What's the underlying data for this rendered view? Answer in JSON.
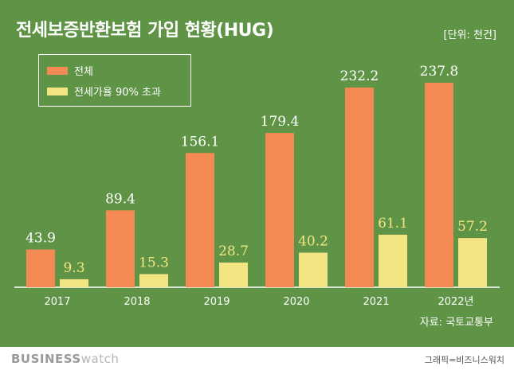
{
  "title": "전세보증반환보험 가입 현황(HUG)",
  "unit": "[단위: 천건]",
  "source": "자료: 국토교통부",
  "footer": {
    "brand_bold": "BUSINESS",
    "brand_light": "watch",
    "credit": "그래픽=비즈니스워치"
  },
  "colors": {
    "background": "#5f9447",
    "total": "#f58a55",
    "over90": "#f2e582",
    "axis": "#ffffff"
  },
  "chart_data": {
    "type": "bar",
    "categories": [
      "2017",
      "2018",
      "2019",
      "2020",
      "2021",
      "2022년"
    ],
    "series": [
      {
        "name": "전체",
        "values": [
          43.9,
          89.4,
          156.1,
          179.4,
          232.2,
          237.8
        ],
        "labels": [
          "43.9",
          "89.4",
          "156.1",
          "179.4",
          "232.2",
          "237.8"
        ]
      },
      {
        "name": "전세가율 90% 초과",
        "values": [
          9.3,
          15.3,
          28.7,
          40.2,
          61.1,
          57.2
        ],
        "labels": [
          "9.3",
          "15.3",
          "28.7",
          "40.2",
          "61.1",
          "57.2"
        ]
      }
    ],
    "ylim": [
      0,
      260
    ],
    "legend": "top-left",
    "grid": false
  }
}
